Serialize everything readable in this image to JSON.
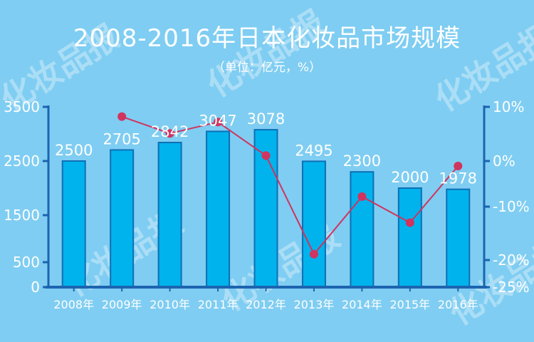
{
  "header": {
    "title": "2008-2016年日本化妆品市场规模",
    "subtitle": "（单位：亿元，%）"
  },
  "watermarks": {
    "brand": "化妆品报"
  },
  "chart_data": {
    "type": "bar",
    "categories": [
      "2008年",
      "2009年",
      "2010年",
      "2011年",
      "2012年",
      "2013年",
      "2014年",
      "2015年",
      "2016年"
    ],
    "series": [
      {
        "values": [
          2500,
          2705,
          2842,
          3047,
          3078,
          2495,
          2300,
          2000,
          1978
        ]
      },
      {
        "values": [
          null,
          8.2,
          5.1,
          7.2,
          1.0,
          -18.9,
          -7.8,
          -13.0,
          -1.1
        ]
      }
    ],
    "y_left": {
      "ticks": [
        0,
        500,
        1500,
        2500,
        3500
      ],
      "range": [
        0,
        3500
      ]
    },
    "y_right": {
      "ticks": [
        "10%",
        "0%",
        "-10%",
        "-20%",
        "-25%"
      ],
      "range": [
        -25,
        10
      ]
    },
    "grid": false,
    "colors": {
      "bar": "#00b3ec",
      "bar_edge": "#0f6fb5",
      "line": "#d0345f",
      "axis": "#1c64b0"
    }
  }
}
